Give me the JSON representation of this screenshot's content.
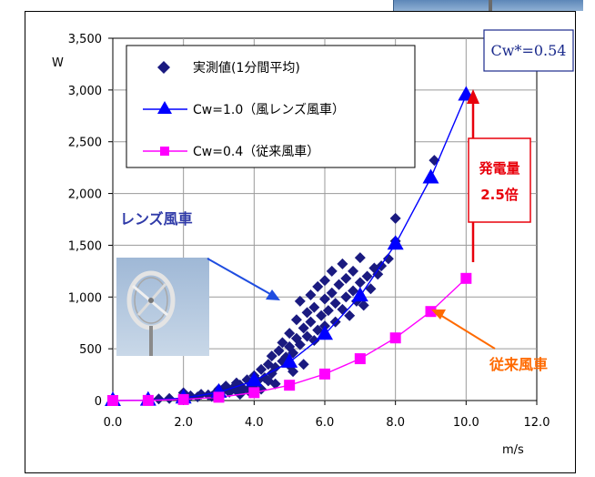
{
  "chart_data": {
    "type": "scatter",
    "ylabel": "W",
    "xlabel": "m/s",
    "xlim": [
      0,
      12
    ],
    "ylim": [
      0,
      3500
    ],
    "x_ticks": [
      "0.0",
      "2.0",
      "4.0",
      "6.0",
      "8.0",
      "10.0",
      "12.0"
    ],
    "y_ticks": [
      "0",
      "500",
      "1,000",
      "1,500",
      "2,000",
      "2,500",
      "3,000",
      "3,500"
    ],
    "legend": {
      "placement": "top-left",
      "entries": [
        "実測値(1分間平均)",
        "Cw=1.0（風レンズ風車）",
        "Cw=0.4（従来風車）"
      ]
    },
    "series": [
      {
        "name": "Cw=1.0（風レンズ風車）",
        "marker": "triangle",
        "color": "#0000ff",
        "x": [
          0,
          1,
          2,
          3,
          4,
          5,
          6,
          7,
          8,
          9,
          10
        ],
        "y": [
          0,
          3,
          24,
          80,
          190,
          370,
          640,
          1010,
          1510,
          2150,
          2950
        ]
      },
      {
        "name": "Cw=0.4（従来風車）",
        "marker": "square",
        "color": "#ff00ff",
        "x": [
          0,
          1,
          2,
          3,
          4,
          5,
          6,
          7,
          8,
          9,
          10
        ],
        "y": [
          0,
          1,
          10,
          32,
          76,
          148,
          256,
          404,
          605,
          860,
          1180
        ]
      },
      {
        "name": "実測値(1分間平均)",
        "marker": "diamond",
        "color": "#1a1a80",
        "points": [
          [
            1.0,
            10
          ],
          [
            1.3,
            15
          ],
          [
            1.6,
            20
          ],
          [
            2.0,
            30
          ],
          [
            2.0,
            75
          ],
          [
            2.2,
            45
          ],
          [
            2.4,
            35
          ],
          [
            2.5,
            60
          ],
          [
            2.7,
            55
          ],
          [
            2.9,
            70
          ],
          [
            3.0,
            60
          ],
          [
            3.0,
            110
          ],
          [
            3.1,
            90
          ],
          [
            3.2,
            140
          ],
          [
            3.3,
            80
          ],
          [
            3.4,
            120
          ],
          [
            3.5,
            95
          ],
          [
            3.5,
            170
          ],
          [
            3.6,
            150
          ],
          [
            3.7,
            110
          ],
          [
            3.8,
            200
          ],
          [
            3.9,
            130
          ],
          [
            4.0,
            150
          ],
          [
            4.0,
            240
          ],
          [
            4.1,
            190
          ],
          [
            4.2,
            300
          ],
          [
            4.3,
            220
          ],
          [
            4.4,
            350
          ],
          [
            4.5,
            260
          ],
          [
            4.5,
            430
          ],
          [
            4.6,
            320
          ],
          [
            4.7,
            480
          ],
          [
            4.8,
            380
          ],
          [
            4.8,
            560
          ],
          [
            4.9,
            420
          ],
          [
            5.0,
            340
          ],
          [
            5.0,
            520
          ],
          [
            5.0,
            650
          ],
          [
            5.1,
            460
          ],
          [
            5.2,
            600
          ],
          [
            5.2,
            780
          ],
          [
            5.3,
            540
          ],
          [
            5.3,
            960
          ],
          [
            5.4,
            700
          ],
          [
            5.5,
            620
          ],
          [
            5.5,
            850
          ],
          [
            5.6,
            760
          ],
          [
            5.6,
            1020
          ],
          [
            5.7,
            580
          ],
          [
            5.7,
            900
          ],
          [
            5.8,
            680
          ],
          [
            5.8,
            1100
          ],
          [
            5.9,
            820
          ],
          [
            6.0,
            720
          ],
          [
            6.0,
            980
          ],
          [
            6.0,
            1160
          ],
          [
            6.1,
            870
          ],
          [
            6.2,
            1040
          ],
          [
            6.2,
            1250
          ],
          [
            6.3,
            760
          ],
          [
            6.3,
            940
          ],
          [
            6.4,
            1120
          ],
          [
            6.5,
            880
          ],
          [
            6.5,
            1320
          ],
          [
            6.6,
            1000
          ],
          [
            6.6,
            1180
          ],
          [
            6.7,
            820
          ],
          [
            6.8,
            1060
          ],
          [
            6.8,
            1250
          ],
          [
            6.9,
            960
          ],
          [
            7.0,
            1140
          ],
          [
            7.0,
            1380
          ],
          [
            7.1,
            920
          ],
          [
            7.2,
            1200
          ],
          [
            7.3,
            1080
          ],
          [
            7.4,
            1280
          ],
          [
            7.5,
            1220
          ],
          [
            7.6,
            1300
          ],
          [
            7.8,
            1370
          ],
          [
            8.0,
            1540
          ],
          [
            8.0,
            1760
          ],
          [
            9.1,
            2320
          ],
          [
            4.4,
            190
          ],
          [
            3.6,
            60
          ],
          [
            2.8,
            40
          ],
          [
            4.6,
            160
          ],
          [
            5.1,
            280
          ],
          [
            5.4,
            350
          ],
          [
            4.2,
            110
          ],
          [
            3.9,
            75
          ]
        ]
      }
    ],
    "annotations": {
      "cw_box": "Cw*=0.54",
      "lens_label": "レンズ風車",
      "conventional_label": "従来風車",
      "gain_line1": "発電量",
      "gain_line2": "2.5倍"
    },
    "colors": {
      "lens_arrow": "#1f4de0",
      "conventional_arrow": "#ff6a00",
      "gain_arrow": "#e8000b"
    }
  }
}
